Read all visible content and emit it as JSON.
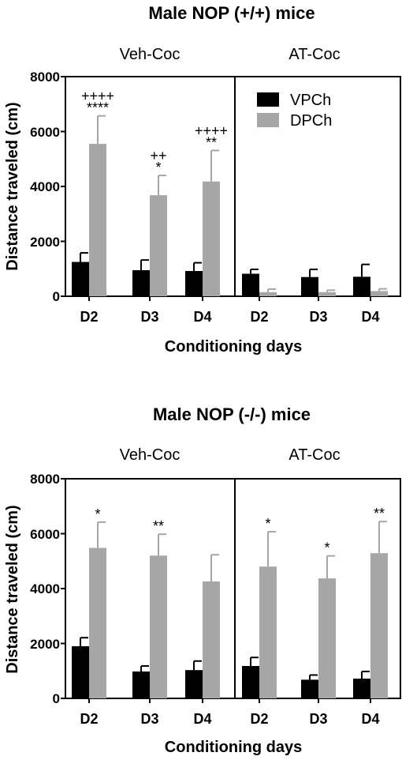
{
  "colors": {
    "VPCh": "#000000",
    "DPCh": "#a6a6a6",
    "axis": "#000000"
  },
  "legend": [
    {
      "name": "VPCh",
      "color": "#000000"
    },
    {
      "name": "DPCh",
      "color": "#a6a6a6"
    }
  ],
  "chart_data": [
    {
      "type": "bar",
      "title": "Male NOP (+/+) mice",
      "xlabel": "Conditioning days",
      "ylabel": "Distance traveled (cm)",
      "ylim": [
        0,
        8000
      ],
      "yticks": [
        "0",
        "2000",
        "4000",
        "6000",
        "8000"
      ],
      "legend_position": "top-right",
      "panels": [
        {
          "label": "Veh-Coc",
          "categories": [
            "D2",
            "D3",
            "D4"
          ],
          "series": [
            {
              "name": "VPCh",
              "values": [
                1250,
                950,
                920
              ],
              "errors": [
                330,
                370,
                300
              ]
            },
            {
              "name": "DPCh",
              "values": [
                5550,
                3680,
                4180
              ],
              "errors": [
                1020,
                720,
                1130
              ]
            }
          ],
          "annotations": [
            {
              "category": "D2",
              "lines": [
                "++++",
                "****"
              ]
            },
            {
              "category": "D3",
              "lines": [
                "++",
                "*"
              ]
            },
            {
              "category": "D4",
              "lines": [
                "++++",
                "**"
              ]
            }
          ]
        },
        {
          "label": "AT-Coc",
          "categories": [
            "D2",
            "D3",
            "D4"
          ],
          "series": [
            {
              "name": "VPCh",
              "values": [
                820,
                700,
                710
              ],
              "errors": [
                160,
                280,
                450
              ]
            },
            {
              "name": "DPCh",
              "values": [
                150,
                150,
                190
              ],
              "errors": [
                110,
                70,
                80
              ]
            }
          ],
          "annotations": []
        }
      ]
    },
    {
      "type": "bar",
      "title": "Male NOP (-/-) mice",
      "xlabel": "Conditioning days",
      "ylabel": "Distance traveled (cm)",
      "ylim": [
        0,
        8000
      ],
      "yticks": [
        "0",
        "2000",
        "4000",
        "6000",
        "8000"
      ],
      "panels": [
        {
          "label": "Veh-Coc",
          "categories": [
            "D2",
            "D3",
            "D4"
          ],
          "series": [
            {
              "name": "VPCh",
              "values": [
                1900,
                980,
                1030
              ],
              "errors": [
                310,
                200,
                330
              ]
            },
            {
              "name": "DPCh",
              "values": [
                5480,
                5200,
                4260
              ],
              "errors": [
                940,
                780,
                970
              ]
            }
          ],
          "annotations": [
            {
              "category": "D2",
              "lines": [
                "*"
              ]
            },
            {
              "category": "D3",
              "lines": [
                "**"
              ]
            }
          ]
        },
        {
          "label": "AT-Coc",
          "categories": [
            "D2",
            "D3",
            "D4"
          ],
          "series": [
            {
              "name": "VPCh",
              "values": [
                1180,
                680,
                720
              ],
              "errors": [
                310,
                170,
                260
              ]
            },
            {
              "name": "DPCh",
              "values": [
                4800,
                4370,
                5290
              ],
              "errors": [
                1270,
                820,
                1150
              ]
            }
          ],
          "annotations": [
            {
              "category": "D2",
              "lines": [
                "*"
              ]
            },
            {
              "category": "D3",
              "lines": [
                "*"
              ]
            },
            {
              "category": "D4",
              "lines": [
                "**"
              ]
            }
          ]
        }
      ]
    }
  ]
}
